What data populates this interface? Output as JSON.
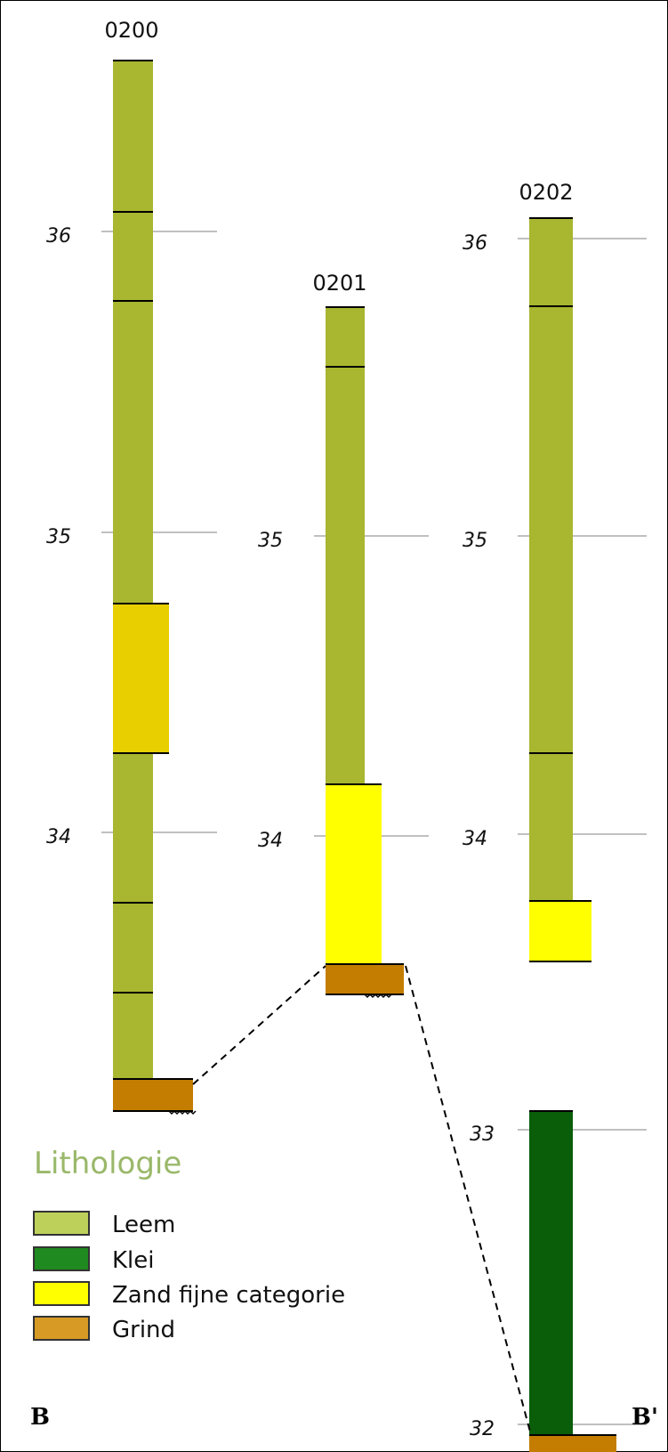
{
  "colors": {
    "leem": "#a8b630",
    "klei": "#0a5e0a",
    "zand": "#ffff00",
    "zand_dark": "#e8cf00",
    "grind": "#c47d00",
    "legend_leem": "#bdd15a",
    "legend_klei": "#1f8a1f",
    "legend_zand": "#ffff00",
    "legend_grind": "#d79b25",
    "gridline": "#c0c0c0"
  },
  "boreholes": [
    {
      "name": "0200",
      "ticks": [
        "36",
        "35",
        "34"
      ]
    },
    {
      "name": "0201",
      "ticks": [
        "35",
        "34"
      ]
    },
    {
      "name": "0202",
      "ticks": [
        "36",
        "35",
        "34",
        "33",
        "32"
      ]
    }
  ],
  "legend": {
    "title": "Lithologie",
    "items": [
      {
        "label": "Leem",
        "color_key": "legend_leem"
      },
      {
        "label": "Klei",
        "color_key": "legend_klei"
      },
      {
        "label": "Zand fijne categorie",
        "color_key": "legend_zand"
      },
      {
        "label": "Grind",
        "color_key": "legend_grind"
      }
    ]
  },
  "section_labels": {
    "start": "B",
    "end": "B'"
  }
}
